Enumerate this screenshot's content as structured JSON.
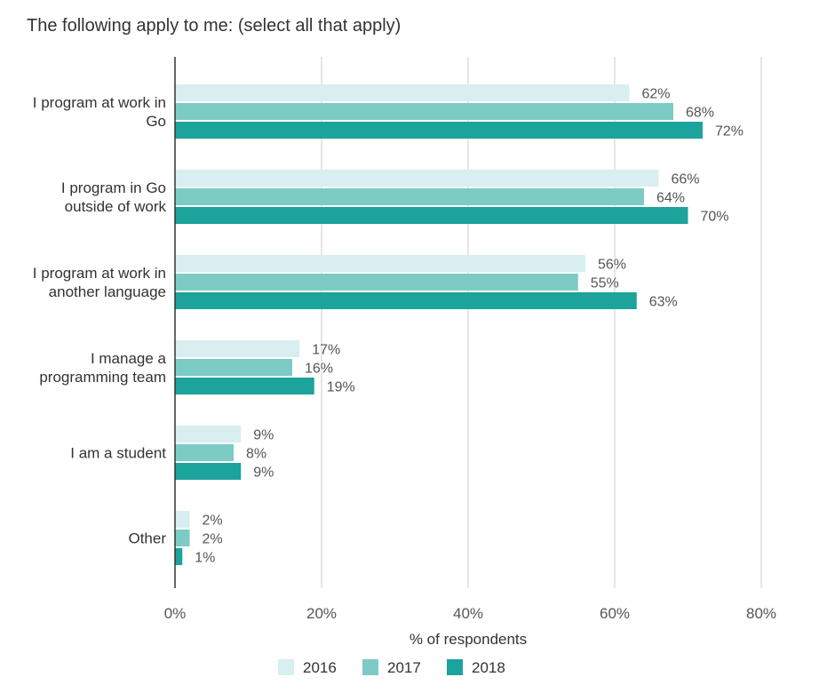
{
  "chart_data": {
    "type": "bar",
    "orientation": "horizontal",
    "title": "The following apply to me: (select all that apply)",
    "xlabel": "% of respondents",
    "ylabel": "",
    "xlim": [
      0,
      80
    ],
    "x_ticks": [
      0,
      20,
      40,
      60,
      80
    ],
    "x_tick_labels": [
      "0%",
      "20%",
      "40%",
      "60%",
      "80%"
    ],
    "grid": true,
    "legend_position": "bottom",
    "categories": [
      [
        "I program at work in",
        "Go"
      ],
      [
        "I program in Go",
        "outside of work"
      ],
      [
        "I program at work in",
        "another language"
      ],
      [
        "I manage a",
        "programming team"
      ],
      [
        "I am a student"
      ],
      [
        "Other"
      ]
    ],
    "series": [
      {
        "name": "2016",
        "color": "#d8eef0",
        "values": [
          62,
          66,
          56,
          17,
          9,
          2
        ],
        "labels": [
          "62%",
          "66%",
          "56%",
          "17%",
          "9%",
          "2%"
        ]
      },
      {
        "name": "2017",
        "color": "#7ccbc5",
        "values": [
          68,
          64,
          55,
          16,
          8,
          2
        ],
        "labels": [
          "68%",
          "64%",
          "55%",
          "16%",
          "8%",
          "2%"
        ]
      },
      {
        "name": "2018",
        "color": "#1ba39c",
        "values": [
          72,
          70,
          63,
          19,
          9,
          1
        ],
        "labels": [
          "72%",
          "70%",
          "63%",
          "19%",
          "9%",
          "1%"
        ]
      }
    ]
  }
}
